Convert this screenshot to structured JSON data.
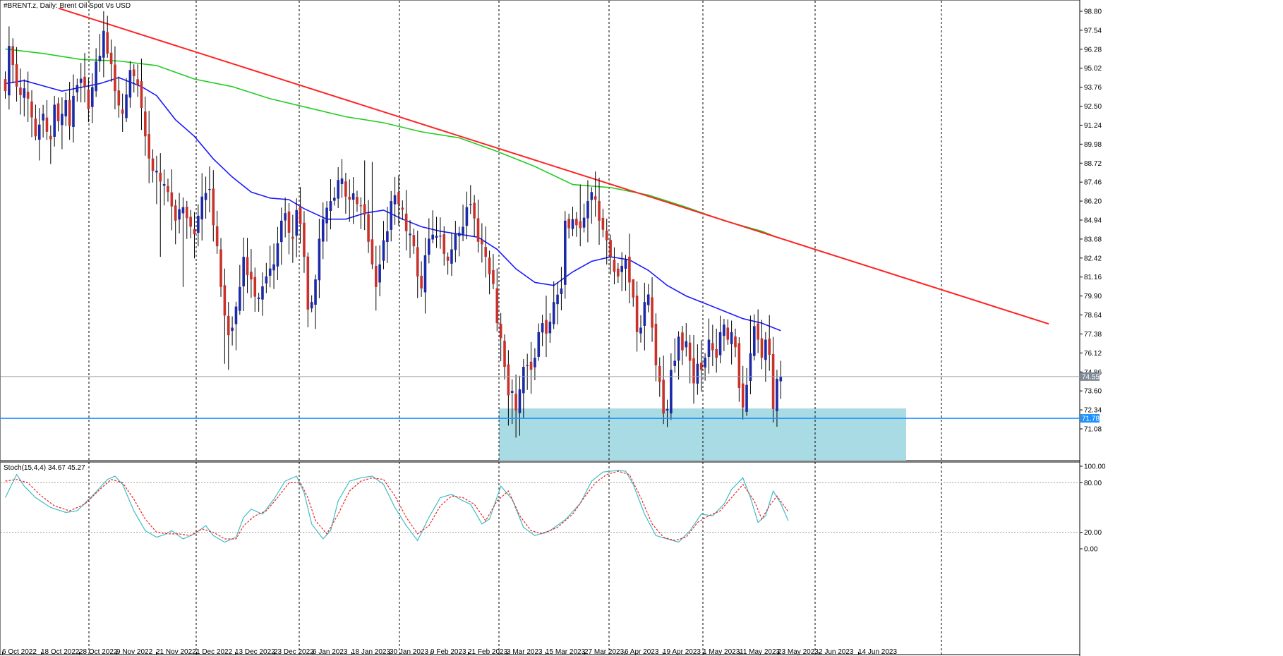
{
  "chart_data": {
    "type": "candlestick",
    "title": "#BRENT.z, Daily:  Brent Oil Spot Vs USD",
    "instrument": "#BRENT.z",
    "timeframe": "Daily",
    "description_text": "Brent Oil Spot Vs USD",
    "xlabel": "",
    "ylabel": "",
    "ylim": [
      70.3,
      99.3
    ],
    "price_ticks": [
      "98.80",
      "97.54",
      "96.28",
      "95.02",
      "93.76",
      "92.50",
      "91.24",
      "89.98",
      "88.72",
      "87.46",
      "86.20",
      "84.94",
      "83.68",
      "82.42",
      "81.16",
      "79.90",
      "78.64",
      "77.38",
      "76.12",
      "74.86",
      "73.60",
      "72.34",
      "71.08"
    ],
    "date_labels": [
      "6 Oct 2022",
      "18 Oct 2022",
      "28 Oct 2022",
      "9 Nov 2022",
      "21 Nov 2022",
      "1 Dec 2022",
      "13 Dec 2022",
      "23 Dec 2022",
      "6 Jan 2023",
      "18 Jan 2023",
      "30 Jan 2023",
      "9 Feb 2023",
      "21 Feb 2023",
      "3 Mar 2023",
      "15 Mar 2023",
      "27 Mar 2023",
      "6 Apr 2023",
      "19 Apr 2023",
      "1 May 2023",
      "11 May 2023",
      "23 May 2023",
      "2 Jun 2023",
      "14 Jun 2023"
    ],
    "current_price": "74.55",
    "support_level": "71.78",
    "colors": {
      "bull": "#1c2aa8",
      "bear": "#c8322a",
      "wick": "#000000",
      "ma_fast": "#1a1aff",
      "ma_slow": "#22cc22",
      "trendline": "#ff2222",
      "support_line": "#1e90ff",
      "support_zone": "#a8dbe3",
      "stoch_main": "#3fbdc4",
      "stoch_signal": "#ee2222",
      "price_marker": "#7e8a96",
      "support_marker": "#1e90ff"
    },
    "stochastic": {
      "label": "Stoch(15,4,4) 34.67 45.27",
      "main": 34.67,
      "signal": 45.27,
      "levels": [
        20,
        80
      ],
      "ticks": [
        "100.00",
        "80.00",
        "20.00",
        "0.00"
      ]
    }
  }
}
